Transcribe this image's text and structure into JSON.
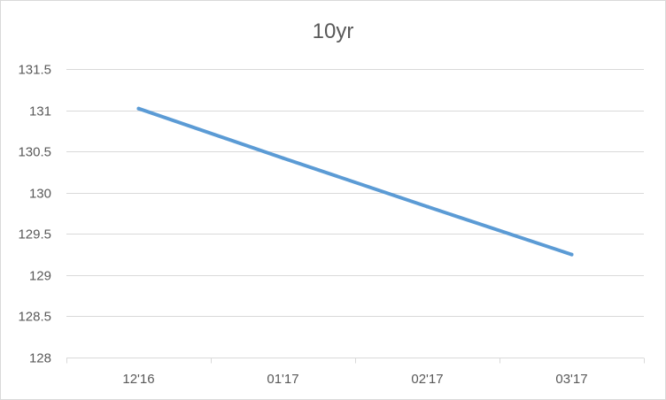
{
  "chart_data": {
    "type": "line",
    "title": "10yr",
    "categories": [
      "12'16",
      "01'17",
      "02'17",
      "03'17"
    ],
    "series": [
      {
        "values": [
          131.02,
          130.42,
          129.83,
          129.25
        ],
        "color": "#5b9bd5"
      }
    ],
    "ylim": [
      128,
      131.5
    ],
    "y_ticks": [
      128,
      128.5,
      129,
      129.5,
      130,
      130.5,
      131,
      131.5
    ],
    "xlabel": "",
    "ylabel": "",
    "grid": true,
    "legend": "none"
  }
}
